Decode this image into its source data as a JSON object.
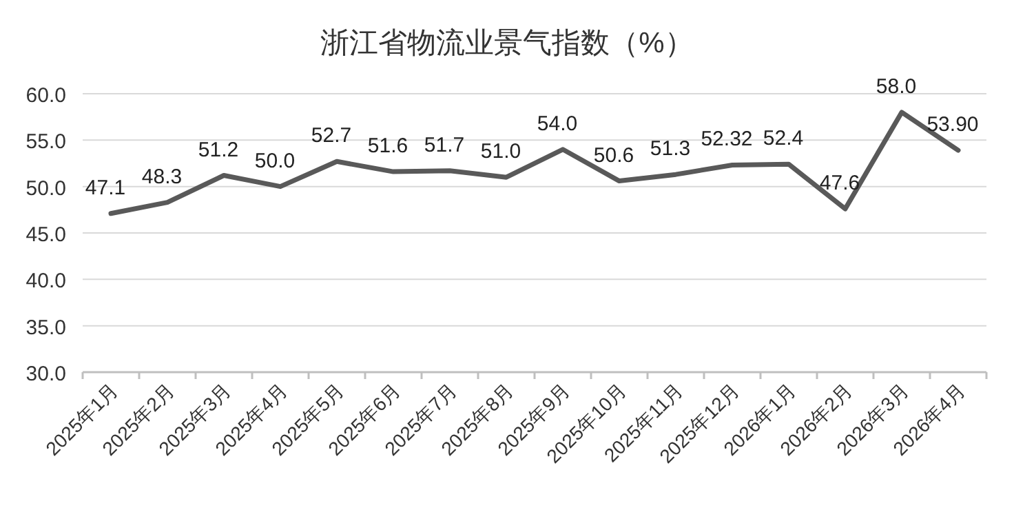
{
  "chart_data": {
    "type": "line",
    "title": "浙江省物流业景气指数（%）",
    "categories": [
      "2025年1月",
      "2025年2月",
      "2025年3月",
      "2025年4月",
      "2025年5月",
      "2025年6月",
      "2025年7月",
      "2025年8月",
      "2025年9月",
      "2025年10月",
      "2025年11月",
      "2025年12月",
      "2026年1月",
      "2026年2月",
      "2026年3月",
      "2026年4月"
    ],
    "series": [
      {
        "color": "#595959",
        "values": [
          47.1,
          48.3,
          51.2,
          50.0,
          52.7,
          51.6,
          51.7,
          51.0,
          54.0,
          50.6,
          51.3,
          52.32,
          52.4,
          47.6,
          58.0,
          53.9
        ],
        "value_labels": [
          "47.1",
          "48.3",
          "51.2",
          "50.0",
          "52.7",
          "51.6",
          "51.7",
          "51.0",
          "54.0",
          "50.6",
          "51.3",
          "52.32",
          "52.4",
          "47.6",
          "58.0",
          "53.90"
        ]
      }
    ],
    "ylim": [
      30,
      60
    ],
    "yticks": [
      {
        "value": 30,
        "label": "30.0"
      },
      {
        "value": 35,
        "label": "35.0"
      },
      {
        "value": 40,
        "label": "40.0"
      },
      {
        "value": 45,
        "label": "45.0"
      },
      {
        "value": 50,
        "label": "50.0"
      },
      {
        "value": 55,
        "label": "55.0"
      },
      {
        "value": 60,
        "label": "60.0"
      }
    ],
    "grid": "y",
    "marker": "none",
    "line_style": "solid"
  }
}
